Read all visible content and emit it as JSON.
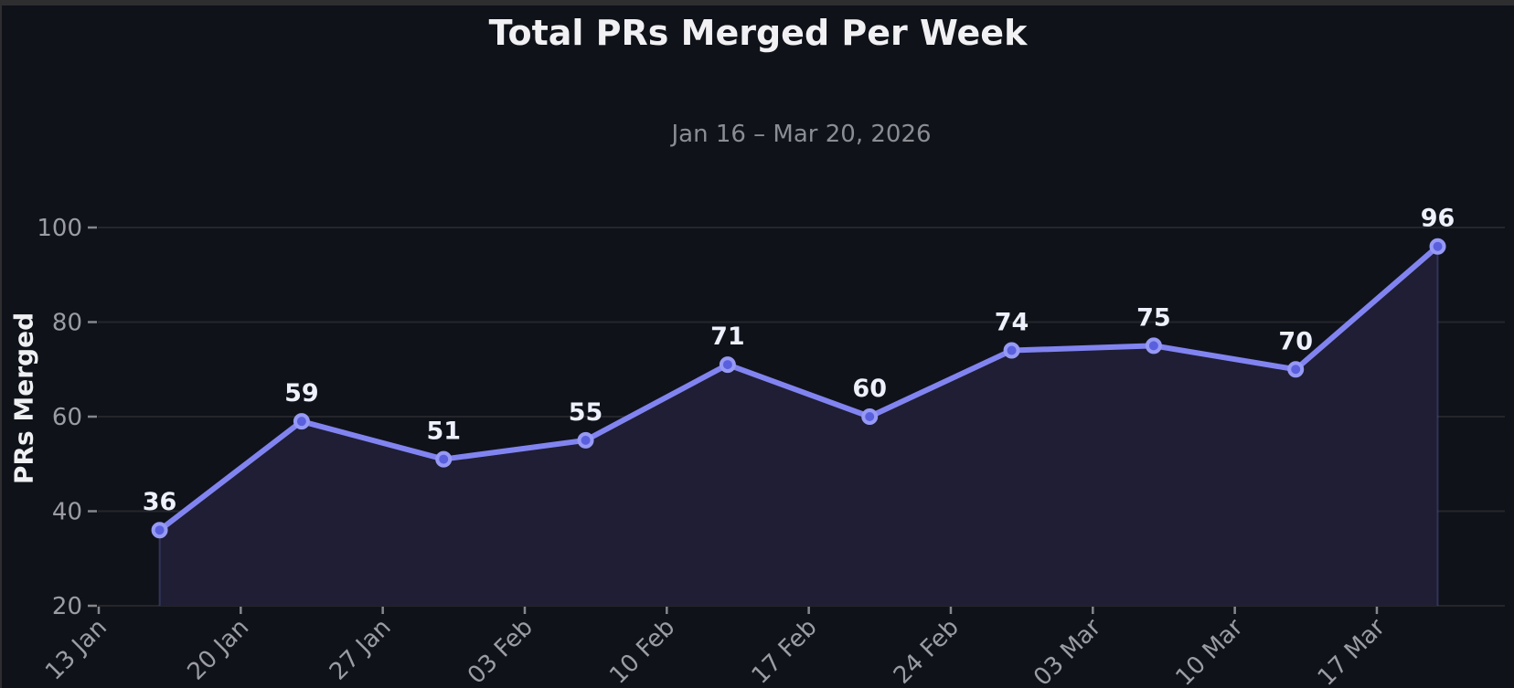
{
  "window": {
    "background": "#10121a",
    "frame_color": "#2e2e31"
  },
  "chart_data": {
    "type": "line",
    "title": "Total PRs Merged Per Week",
    "subtitle": "Jan 16 – Mar 20, 2026",
    "xlabel": "",
    "ylabel": "PRs Merged",
    "x_tick_labels": [
      "13 Jan",
      "20 Jan",
      "27 Jan",
      "03 Feb",
      "10 Feb",
      "17 Feb",
      "24 Feb",
      "03 Mar",
      "10 Mar",
      "17 Mar"
    ],
    "x_tick_day_offsets": [
      0,
      7,
      14,
      21,
      28,
      35,
      42,
      49,
      56,
      63
    ],
    "y_ticks": [
      20,
      40,
      60,
      80,
      100
    ],
    "ylim": [
      20,
      108
    ],
    "grid": "horizontal",
    "legend": "none",
    "series": [
      {
        "name": "PRs Merged",
        "point_day_offsets": [
          3,
          10,
          17,
          24,
          31,
          38,
          45,
          52,
          59,
          66
        ],
        "values": [
          36,
          59,
          51,
          55,
          71,
          60,
          74,
          75,
          70,
          96
        ],
        "area_fill": true,
        "point_labels": [
          "36",
          "59",
          "51",
          "55",
          "71",
          "60",
          "74",
          "75",
          "70",
          "96"
        ]
      }
    ],
    "colors": {
      "line": "#8184f0",
      "marker_fill": "#5a60dd",
      "marker_edge": "#969af4",
      "area": "#1f1e34",
      "area_edge": "rgba(129,132,240,0.25)",
      "grid": "#24262b",
      "tick_mark": "#85878d",
      "tick_label": "#9b9da3",
      "title": "#f1f1f4",
      "subtitle": "#8b8d93",
      "ylabel": "#eef0f2",
      "point_label": "#eef0fb",
      "background": "#10121a",
      "frame": "#2e2e31"
    }
  }
}
